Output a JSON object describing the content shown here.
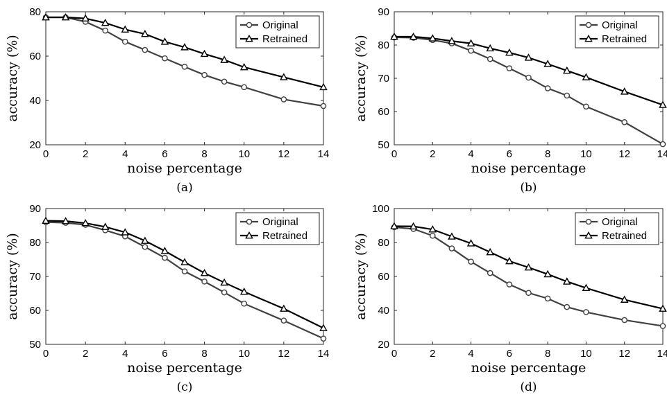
{
  "chart_data": [
    {
      "type": "line",
      "caption": "(a)",
      "xlabel": "noise percentage",
      "ylabel": "accuracy (%)",
      "xlim": [
        0,
        14
      ],
      "ylim": [
        20,
        80
      ],
      "xticks": [
        0,
        2,
        4,
        6,
        8,
        10,
        12,
        14
      ],
      "yticks": [
        20,
        40,
        60,
        80
      ],
      "legend_position": "top-right",
      "x": [
        0,
        1,
        2,
        3,
        4,
        5,
        6,
        7,
        8,
        9,
        10,
        12,
        14
      ],
      "series": [
        {
          "name": "Original",
          "marker": "circle",
          "color": "#404040",
          "values": [
            77.5,
            77.5,
            75.5,
            71.5,
            66.5,
            62.8,
            59.0,
            55.2,
            51.5,
            48.5,
            46.0,
            40.5,
            37.5
          ]
        },
        {
          "name": "Retrained",
          "marker": "triangle",
          "color": "#000000",
          "values": [
            77.5,
            77.5,
            77.0,
            75.0,
            72.0,
            70.0,
            66.5,
            64.0,
            61.0,
            58.3,
            55.0,
            50.5,
            46.0
          ]
        }
      ]
    },
    {
      "type": "line",
      "caption": "(b)",
      "xlabel": "noise percentage",
      "ylabel": "accuracy (%)",
      "xlim": [
        0,
        14
      ],
      "ylim": [
        50,
        90
      ],
      "xticks": [
        0,
        2,
        4,
        6,
        8,
        10,
        12,
        14
      ],
      "yticks": [
        50,
        60,
        70,
        80,
        90
      ],
      "legend_position": "top-right",
      "x": [
        0,
        1,
        2,
        3,
        4,
        5,
        6,
        7,
        8,
        9,
        10,
        12,
        14
      ],
      "series": [
        {
          "name": "Original",
          "marker": "circle",
          "color": "#404040",
          "values": [
            82.3,
            82.2,
            81.5,
            80.5,
            78.3,
            75.8,
            73.0,
            70.2,
            67.0,
            64.8,
            61.5,
            56.8,
            50.2
          ]
        },
        {
          "name": "Retrained",
          "marker": "triangle",
          "color": "#000000",
          "values": [
            82.5,
            82.5,
            82.0,
            81.2,
            80.5,
            79.0,
            77.7,
            76.2,
            74.3,
            72.3,
            70.3,
            66.0,
            62.0
          ]
        }
      ]
    },
    {
      "type": "line",
      "caption": "(c)",
      "xlabel": "noise percentage",
      "ylabel": "accuracy (%)",
      "xlim": [
        0,
        14
      ],
      "ylim": [
        50,
        90
      ],
      "xticks": [
        0,
        2,
        4,
        6,
        8,
        10,
        12,
        14
      ],
      "yticks": [
        50,
        60,
        70,
        80,
        90
      ],
      "legend_position": "top-right",
      "x": [
        0,
        1,
        2,
        3,
        4,
        5,
        6,
        7,
        8,
        9,
        10,
        12,
        14
      ],
      "series": [
        {
          "name": "Original",
          "marker": "circle",
          "color": "#404040",
          "values": [
            86.0,
            85.8,
            85.2,
            83.6,
            81.8,
            78.7,
            75.5,
            71.5,
            68.5,
            65.3,
            62.0,
            57.0,
            51.7
          ]
        },
        {
          "name": "Retrained",
          "marker": "triangle",
          "color": "#000000",
          "values": [
            86.4,
            86.3,
            85.7,
            84.6,
            83.0,
            80.5,
            77.5,
            74.2,
            71.0,
            68.2,
            65.5,
            60.5,
            54.8
          ]
        }
      ]
    },
    {
      "type": "line",
      "caption": "(d)",
      "xlabel": "noise percentage",
      "ylabel": "accuracy (%)",
      "xlim": [
        0,
        14
      ],
      "ylim": [
        20,
        100
      ],
      "xticks": [
        0,
        2,
        4,
        6,
        8,
        10,
        12,
        14
      ],
      "yticks": [
        20,
        40,
        60,
        80,
        100
      ],
      "legend_position": "top-right",
      "x": [
        0,
        1,
        2,
        3,
        4,
        5,
        6,
        7,
        8,
        9,
        10,
        12,
        14
      ],
      "series": [
        {
          "name": "Original",
          "marker": "circle",
          "color": "#404040",
          "values": [
            89.0,
            88.0,
            84.0,
            76.5,
            68.7,
            62.0,
            55.3,
            50.3,
            47.0,
            42.0,
            39.0,
            34.3,
            30.8
          ]
        },
        {
          "name": "Retrained",
          "marker": "triangle",
          "color": "#000000",
          "values": [
            89.6,
            89.5,
            87.7,
            83.5,
            79.5,
            74.3,
            69.0,
            65.3,
            61.3,
            57.0,
            53.2,
            46.3,
            41.0
          ]
        }
      ]
    }
  ]
}
